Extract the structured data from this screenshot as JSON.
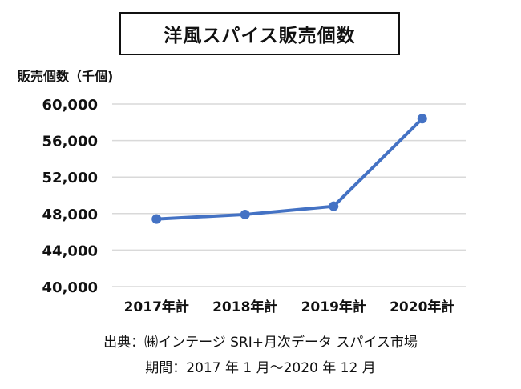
{
  "chart_data": {
    "type": "line",
    "title": "洋風スパイス販売個数",
    "ylabel": "販売個数（千個)",
    "xlabel": "",
    "categories": [
      "2017年計",
      "2018年計",
      "2019年計",
      "2020年計"
    ],
    "series": [
      {
        "values": [
          47400,
          47900,
          48800,
          58400
        ]
      }
    ],
    "ylim": [
      40000,
      60000
    ],
    "yticks": [
      "40,000",
      "44,000",
      "48,000",
      "52,000",
      "56,000",
      "60,000"
    ],
    "grid": true,
    "legend": "none",
    "colors": {
      "line": "#4472c4",
      "grid": "#d9d9d9"
    }
  },
  "source": {
    "line1": "出典：㈱インテージ SRI+月次データ スパイス市場",
    "line2": "期間：2017 年 1 月～2020 年 12 月"
  }
}
